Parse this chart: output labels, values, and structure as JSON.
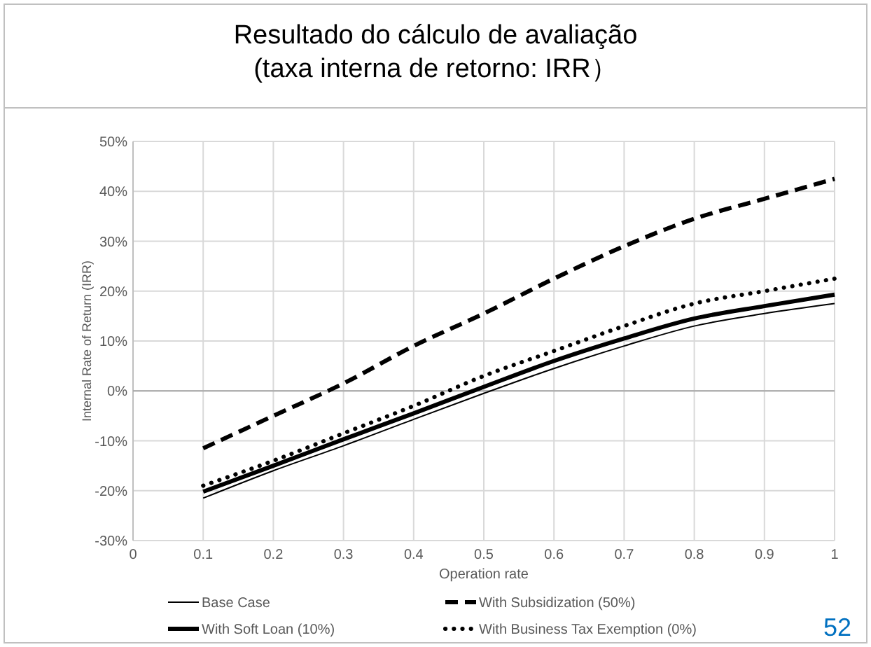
{
  "chart_data": {
    "type": "line",
    "title": "Resultado do cálculo de avaliação",
    "subtitle": "(taxa interna de retorno: IRR）",
    "xlabel": "Operation rate",
    "ylabel": "Internal Rate of Return (IRR)",
    "x": [
      0.1,
      0.2,
      0.3,
      0.4,
      0.5,
      0.6,
      0.7,
      0.8,
      0.9,
      1
    ],
    "series": [
      {
        "name": "Base Case",
        "color": "#000000",
        "line_style": "solid",
        "values": [
          -21.5,
          -16,
          -11,
          -5.7,
          -0.5,
          4.5,
          9,
          13,
          15.5,
          17.5
        ]
      },
      {
        "name": "With Subsidization (50%)",
        "color": "#000000",
        "line_style": "dashed",
        "values": [
          -11.5,
          -5,
          1.5,
          9,
          15.5,
          22.5,
          29,
          34.5,
          38.5,
          42.5
        ]
      },
      {
        "name": "With Soft Loan (10%)",
        "color": "#000000",
        "line_style": "solid",
        "values": [
          -20.2,
          -15,
          -9.7,
          -4.5,
          0.8,
          6,
          10.5,
          14.5,
          17,
          19.3
        ]
      },
      {
        "name": "With Business Tax Exemption (0%)",
        "color": "#000000",
        "line_style": "dotted",
        "values": [
          -19,
          -14,
          -8.5,
          -3,
          3,
          8,
          13,
          17.5,
          20,
          22.5
        ]
      }
    ],
    "xlim": [
      0,
      1
    ],
    "xticks": [
      0,
      0.1,
      0.2,
      0.3,
      0.4,
      0.5,
      0.6,
      0.7,
      0.8,
      0.9,
      1
    ],
    "ylim": [
      -30,
      50
    ],
    "yticks": [
      {
        "value": -30,
        "label": "-30%"
      },
      {
        "value": -20,
        "label": "-20%"
      },
      {
        "value": -10,
        "label": "-10%"
      },
      {
        "value": 0,
        "label": "0%"
      },
      {
        "value": 10,
        "label": "10%"
      },
      {
        "value": 20,
        "label": "20%"
      },
      {
        "value": 30,
        "label": "30%"
      },
      {
        "value": 40,
        "label": "40%"
      },
      {
        "value": 50,
        "label": "50%"
      }
    ],
    "grid": true,
    "legend": "bottom",
    "annotations": [
      "52"
    ]
  }
}
